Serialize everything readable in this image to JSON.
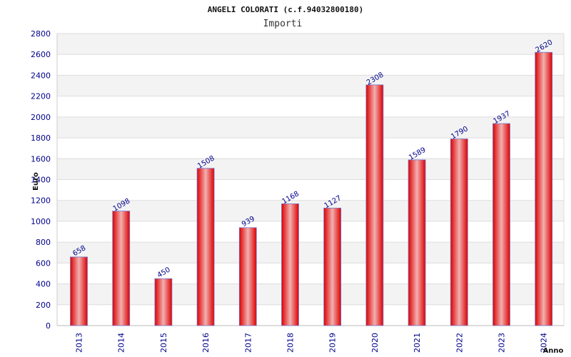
{
  "chart_data": {
    "type": "bar",
    "title": "ANGELI COLORATI (c.f.94032800180)",
    "subtitle": "Importi",
    "xlabel": "Anno",
    "ylabel": "Euro",
    "categories": [
      "2013",
      "2014",
      "2015",
      "2016",
      "2017",
      "2018",
      "2019",
      "2020",
      "2021",
      "2022",
      "2023",
      "2024"
    ],
    "values": [
      658,
      1098,
      450,
      1508,
      939,
      1168,
      1127,
      2308,
      1589,
      1790,
      1937,
      2620
    ],
    "ylim": [
      0,
      2800
    ],
    "yticks": [
      "0",
      "200",
      "400",
      "600",
      "800",
      "1000",
      "1200",
      "1400",
      "1600",
      "1800",
      "2000",
      "2200",
      "2400",
      "2600",
      "2800"
    ],
    "grid": true,
    "colors": {
      "bar_edge": "#dd0000",
      "bar_mid": "#f2b0b0",
      "bar_outline": "#7777cc",
      "band": "#f3f3f3",
      "gridline": "#dddddd",
      "tick_text": "#00008b"
    }
  }
}
